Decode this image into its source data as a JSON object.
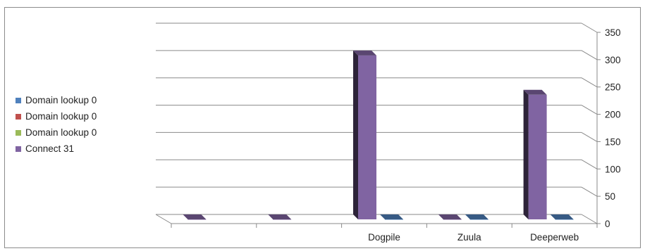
{
  "chart_data": {
    "type": "bar",
    "subtype": "3d-column",
    "title": "",
    "xlabel": "",
    "ylabel": "",
    "ylim": [
      0,
      350
    ],
    "y_ticks": [
      0,
      50,
      100,
      150,
      200,
      250,
      300,
      350
    ],
    "y_axis_side": "right",
    "grid": true,
    "legend_position": "left",
    "categories": [
      "",
      "",
      "Dogpile",
      "Zuula",
      "Deeperweb"
    ],
    "series": [
      {
        "name": "Domain lookup 0",
        "color": "#4f81bd",
        "values": [
          0,
          0,
          0,
          0,
          0
        ]
      },
      {
        "name": "Domain lookup 0",
        "color": "#c0504d",
        "values": [
          0,
          0,
          0,
          0,
          0
        ]
      },
      {
        "name": "Domain lookup 0",
        "color": "#9bbb59",
        "values": [
          0,
          0,
          0,
          0,
          0
        ]
      },
      {
        "name": "Connect 31",
        "color": "#8064a2",
        "values": [
          0,
          0,
          300,
          0,
          228
        ]
      }
    ]
  }
}
